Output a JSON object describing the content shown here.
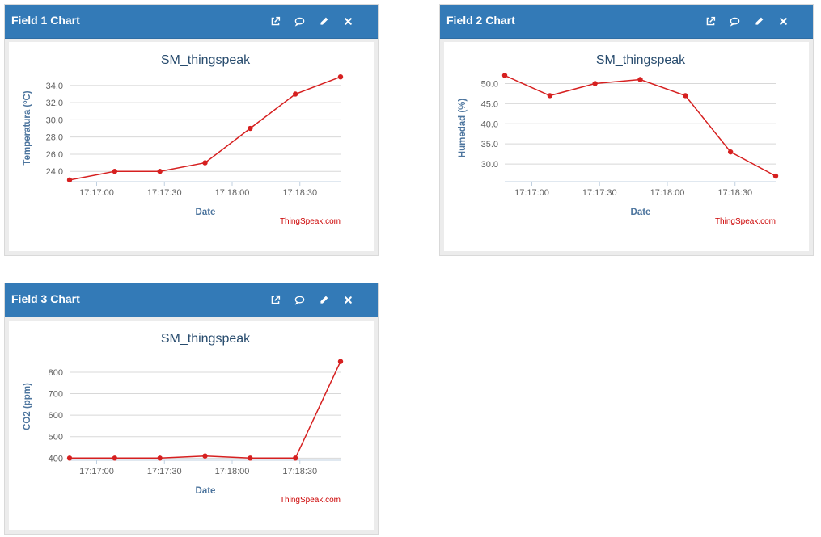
{
  "panels": [
    {
      "title": "Field 1 Chart",
      "chart_data": {
        "type": "line",
        "title": "SM_thingspeak",
        "xlabel": "Date",
        "ylabel": "Temperatura (ºC)",
        "credit": "ThingSpeak.com",
        "color": "#d62020",
        "x_ticks": [
          "17:17:00",
          "17:17:30",
          "17:18:00",
          "17:18:30"
        ],
        "y_ticks": [
          "24.0",
          "26.0",
          "28.0",
          "30.0",
          "32.0",
          "34.0"
        ],
        "ylim": [
          22.8,
          35.3
        ],
        "x": [
          "17:16:48",
          "17:17:08",
          "17:17:28",
          "17:17:48",
          "17:18:08",
          "17:18:28",
          "17:18:48"
        ],
        "values": [
          23.0,
          24.0,
          24.0,
          25.0,
          29.0,
          33.0,
          35.0
        ]
      }
    },
    {
      "title": "Field 2 Chart",
      "chart_data": {
        "type": "line",
        "title": "SM_thingspeak",
        "xlabel": "Date",
        "ylabel": "Humedad (%)",
        "credit": "ThingSpeak.com",
        "color": "#d62020",
        "x_ticks": [
          "17:17:00",
          "17:17:30",
          "17:18:00",
          "17:18:30"
        ],
        "y_ticks": [
          "30.0",
          "35.0",
          "40.0",
          "45.0",
          "50.0"
        ],
        "ylim": [
          25.6,
          52.3
        ],
        "x": [
          "17:16:48",
          "17:17:08",
          "17:17:28",
          "17:17:48",
          "17:18:08",
          "17:18:28",
          "17:18:48"
        ],
        "values": [
          52.0,
          47.0,
          50.0,
          51.0,
          47.0,
          33.0,
          27.0
        ]
      }
    },
    {
      "title": "Field 3 Chart",
      "chart_data": {
        "type": "line",
        "title": "SM_thingspeak",
        "xlabel": "Date",
        "ylabel": "CO2 (ppm)",
        "credit": "ThingSpeak.com",
        "color": "#d62020",
        "x_ticks": [
          "17:17:00",
          "17:17:30",
          "17:18:00",
          "17:18:30"
        ],
        "y_ticks": [
          "400",
          "500",
          "600",
          "700",
          "800"
        ],
        "ylim": [
          390,
          890
        ],
        "x": [
          "17:16:48",
          "17:17:08",
          "17:17:28",
          "17:17:48",
          "17:18:08",
          "17:18:28",
          "17:18:48"
        ],
        "values": [
          400,
          400,
          400,
          410,
          400,
          400,
          850
        ]
      }
    }
  ],
  "icons": [
    "external-link-icon",
    "comment-icon",
    "pencil-icon",
    "close-icon"
  ]
}
